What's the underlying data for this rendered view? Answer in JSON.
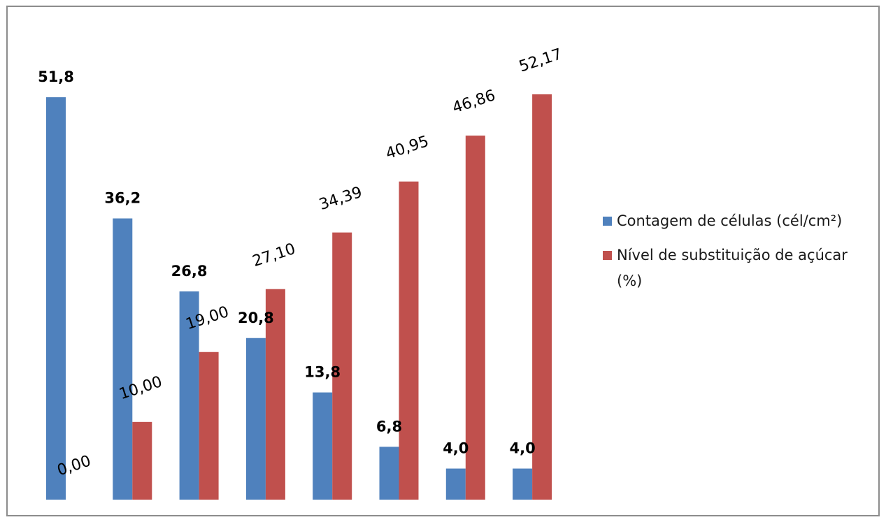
{
  "chart_data": {
    "type": "bar",
    "categories": [
      "",
      "",
      "",
      "",
      "",
      "",
      "",
      ""
    ],
    "series": [
      {
        "name": "Contagem de células (cél/cm²)",
        "color": "#4f81bd",
        "values": [
          51.8,
          36.2,
          26.8,
          20.8,
          13.8,
          6.8,
          4.0,
          4.0
        ],
        "labels": [
          "51,8",
          "36,2",
          "26,8",
          "20,8",
          "13,8",
          "6,8",
          "4,0",
          "4,0"
        ]
      },
      {
        "name": "Nível de substituição de açúcar (%)",
        "color": "#c0504d",
        "values": [
          0.0,
          10.0,
          19.0,
          27.1,
          34.39,
          40.95,
          46.86,
          52.17
        ],
        "labels": [
          "0,00",
          "10,00",
          "19,00",
          "27,10",
          "34,39",
          "40,95",
          "46,86",
          "52,17"
        ]
      }
    ],
    "ylim": [
      0,
      52.17
    ],
    "grid": false,
    "legend_position": "right",
    "title": "",
    "xlabel": "",
    "ylabel": ""
  },
  "legend": {
    "items": [
      {
        "label": "Contagem de células (cél/cm²)",
        "color": "#4f81bd"
      },
      {
        "label": "Nível de substituição de açúcar (%)",
        "color": "#c0504d"
      }
    ]
  }
}
